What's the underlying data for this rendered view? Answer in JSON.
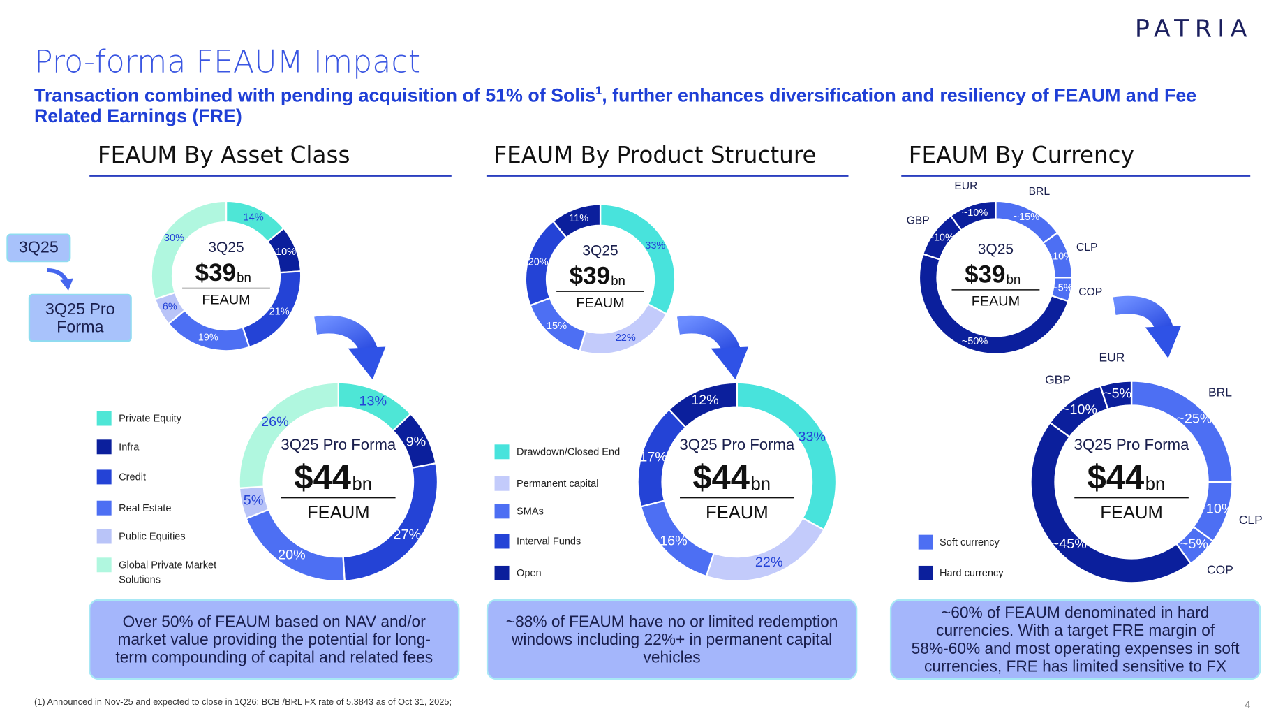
{
  "header": {
    "logo": "PATRIA",
    "title": "Pro-forma FEAUM Impact",
    "subtitle_pre": "Transaction combined with pending acquisition of 51% of Solis",
    "subtitle_sup": "1",
    "subtitle_post": ", further enhances diversification and resiliency of FEAUM and Fee Related Earnings (FRE)"
  },
  "side_labels": {
    "from": "3Q25",
    "to": "3Q25 Pro Forma"
  },
  "sections": [
    {
      "heading": "FEAUM By Asset Class",
      "legend": [
        {
          "label": "Private Equity",
          "color": "#4ee6d6"
        },
        {
          "label": "Infra",
          "color": "#0b1f9c"
        },
        {
          "label": "Credit",
          "color": "#2443d6"
        },
        {
          "label": "Real Estate",
          "color": "#4d6ff3"
        },
        {
          "label": "Public Equities",
          "color": "#b9c4f8"
        },
        {
          "label": "Global Private Market Solutions",
          "color": "#b0f7df"
        }
      ],
      "note": "Over 50% of FEAUM based on NAV and/or market value providing the potential for long-term compounding of capital and related fees"
    },
    {
      "heading": "FEAUM By Product Structure",
      "legend": [
        {
          "label": "Drawdown/Closed End",
          "color": "#48e3dc"
        },
        {
          "label": "Permanent capital",
          "color": "#c3cbfb"
        },
        {
          "label": "SMAs",
          "color": "#4d6ff3"
        },
        {
          "label": "Interval Funds",
          "color": "#2443d6"
        },
        {
          "label": "Open",
          "color": "#0b1f9c"
        }
      ],
      "note": "~88% of FEAUM have no or limited redemption windows including 22%+ in permanent capital vehicles"
    },
    {
      "heading": "FEAUM By Currency",
      "legend": [
        {
          "label": "Soft currency",
          "color": "#4d6ff3"
        },
        {
          "label": "Hard currency",
          "color": "#0b1f9c"
        }
      ],
      "note": "~60% of FEAUM denominated in hard currencies. With a target FRE margin of 58%-60% and most operating expenses in soft currencies, FRE has limited sensitive to FX"
    }
  ],
  "chart_data": [
    {
      "type": "donut",
      "period": "3Q25",
      "amount": "$39",
      "unit": "bn",
      "metric": "FEAUM",
      "values": [
        14,
        10,
        21,
        19,
        6,
        30
      ],
      "value_labels": [
        "14%",
        "10%",
        "21%",
        "19%",
        "6%",
        "30%"
      ],
      "colors": [
        "#4ee6d6",
        "#0b1f9c",
        "#2443d6",
        "#4d6ff3",
        "#b9c4f8",
        "#b0f7df"
      ]
    },
    {
      "type": "donut",
      "period": "3Q25 Pro Forma",
      "amount": "$44",
      "unit": "bn",
      "metric": "FEAUM",
      "values": [
        13,
        9,
        27,
        20,
        5,
        26
      ],
      "value_labels": [
        "13%",
        "9%",
        "27%",
        "20%",
        "5%",
        "26%"
      ],
      "colors": [
        "#4ee6d6",
        "#0b1f9c",
        "#2443d6",
        "#4d6ff3",
        "#b9c4f8",
        "#b0f7df"
      ]
    },
    {
      "type": "donut",
      "period": "3Q25",
      "amount": "$39",
      "unit": "bn",
      "metric": "FEAUM",
      "values": [
        33,
        22,
        15,
        20,
        11
      ],
      "value_labels": [
        "33%",
        "22%",
        "15%",
        "20%",
        "11%"
      ],
      "colors": [
        "#48e3dc",
        "#c3cbfb",
        "#4d6ff3",
        "#2443d6",
        "#0b1f9c"
      ]
    },
    {
      "type": "donut",
      "period": "3Q25 Pro Forma",
      "amount": "$44",
      "unit": "bn",
      "metric": "FEAUM",
      "values": [
        33,
        22,
        16,
        17,
        12
      ],
      "value_labels": [
        "33%",
        "22%",
        "16%",
        "17%",
        "12%"
      ],
      "colors": [
        "#48e3dc",
        "#c3cbfb",
        "#4d6ff3",
        "#2443d6",
        "#0b1f9c"
      ]
    },
    {
      "type": "donut",
      "period": "3Q25",
      "amount": "$39",
      "unit": "bn",
      "metric": "FEAUM",
      "categories": [
        "BRL",
        "CLP",
        "COP",
        null,
        "GBP",
        "EUR"
      ],
      "values": [
        15,
        10,
        5,
        50,
        10,
        10
      ],
      "value_labels": [
        "~15%",
        "~10%",
        "~5%",
        "~50%",
        "~10%",
        "~10%"
      ],
      "colors": [
        "#4d6ff3",
        "#4d6ff3",
        "#4d6ff3",
        "#0b1f9c",
        "#0b1f9c",
        "#0b1f9c"
      ]
    },
    {
      "type": "donut",
      "period": "3Q25 Pro Forma",
      "amount": "$44",
      "unit": "bn",
      "metric": "FEAUM",
      "categories": [
        "BRL",
        "CLP",
        "COP",
        null,
        "GBP",
        "EUR"
      ],
      "values": [
        25,
        10,
        5,
        45,
        10,
        5
      ],
      "value_labels": [
        "~25%",
        "~10%",
        "~5%",
        "~45%",
        "~10%",
        "~5%"
      ],
      "colors": [
        "#4d6ff3",
        "#4d6ff3",
        "#4d6ff3",
        "#0b1f9c",
        "#0b1f9c",
        "#0b1f9c"
      ]
    }
  ],
  "footnote": "(1) Announced in Nov-25 and expected to close in 1Q26; BCB /BRL FX rate of 5.3843 as of Oct 31, 2025;",
  "page_number": "4"
}
